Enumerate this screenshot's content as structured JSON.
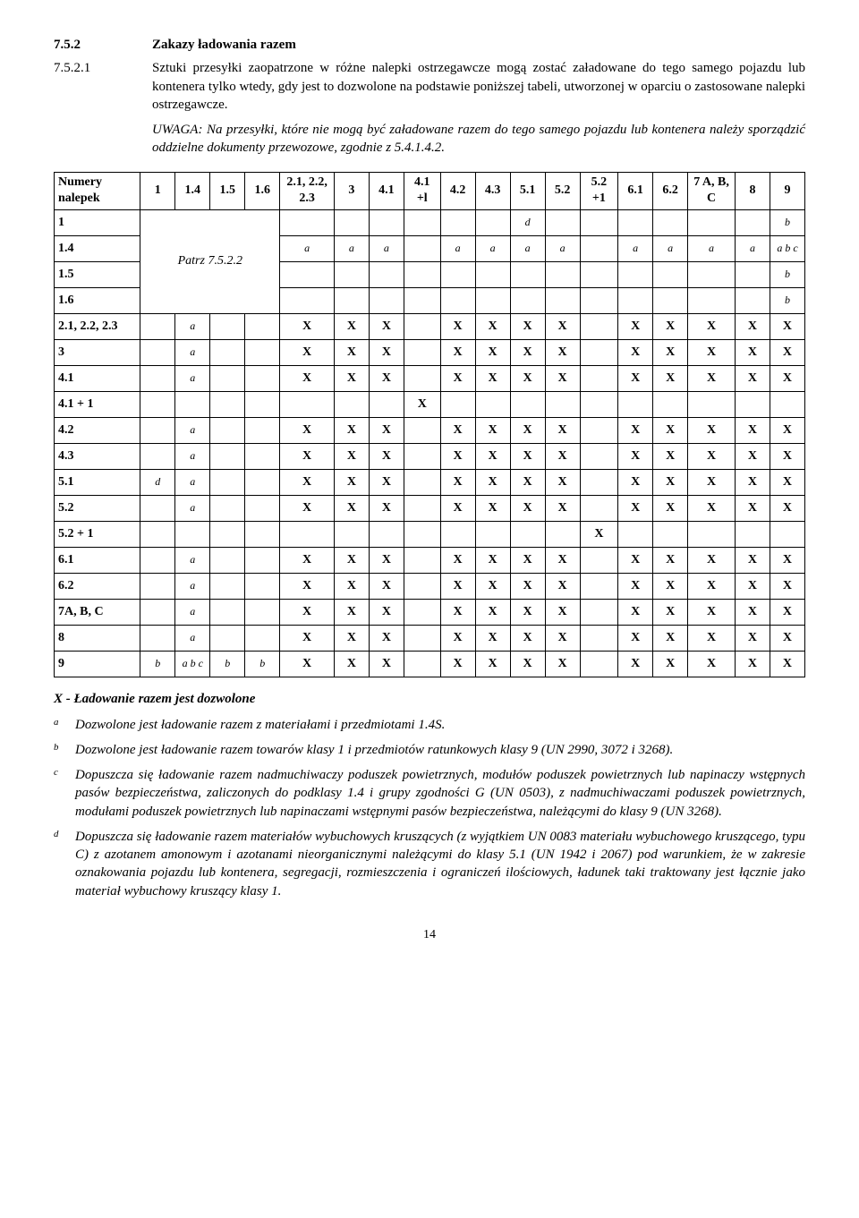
{
  "section": {
    "num1": "7.5.2",
    "title": "Zakazy ładowania razem",
    "num2": "7.5.2.1",
    "para": "Sztuki przesyłki zaopatrzone w różne nalepki ostrzegawcze mogą zostać załadowane do tego samego pojazdu lub kontenera tylko wtedy, gdy jest to dozwolone na podstawie poniższej tabeli, utworzonej w oparciu o zastosowane nalepki ostrzegawcze.",
    "note": "UWAGA: Na przesyłki, które nie mogą być załadowane razem do tego samego pojazdu lub kontenera należy sporządzić oddzielne dokumenty przewozowe, zgodnie z 5.4.1.4.2."
  },
  "table": {
    "corner": "Numery nalepek",
    "cols": [
      "1",
      "1.4",
      "1.5",
      "1.6",
      "2.1, 2.2, 2.3",
      "3",
      "4.1",
      "4.1 +l",
      "4.2",
      "4.3",
      "5.1",
      "5.2",
      "5.2 +1",
      "6.1",
      "6.2",
      "7 A, B, C",
      "8",
      "9"
    ],
    "patrz": "Patrz 7.5.2.2",
    "rows": [
      {
        "h": "1",
        "c": [
          "",
          "",
          "",
          "",
          "",
          "",
          "",
          "",
          "",
          "",
          "d",
          "",
          "",
          "",
          "",
          "",
          "",
          "b"
        ]
      },
      {
        "h": "1.4",
        "c": [
          "",
          "",
          "",
          "",
          "a",
          "a",
          "a",
          "",
          "a",
          "a",
          "a",
          "a",
          "",
          "a",
          "a",
          "a",
          "a",
          "a b c"
        ]
      },
      {
        "h": "1.5",
        "c": [
          "",
          "",
          "",
          "",
          "",
          "",
          "",
          "",
          "",
          "",
          "",
          "",
          "",
          "",
          "",
          "",
          "",
          "b"
        ]
      },
      {
        "h": "1.6",
        "c": [
          "",
          "",
          "",
          "",
          "",
          "",
          "",
          "",
          "",
          "",
          "",
          "",
          "",
          "",
          "",
          "",
          "",
          "b"
        ]
      },
      {
        "h": "2.1, 2.2, 2.3",
        "c": [
          "",
          "a",
          "",
          "",
          "X",
          "X",
          "X",
          "",
          "X",
          "X",
          "X",
          "X",
          "",
          "X",
          "X",
          "X",
          "X",
          "X"
        ]
      },
      {
        "h": "3",
        "c": [
          "",
          "a",
          "",
          "",
          "X",
          "X",
          "X",
          "",
          "X",
          "X",
          "X",
          "X",
          "",
          "X",
          "X",
          "X",
          "X",
          "X"
        ]
      },
      {
        "h": "4.1",
        "c": [
          "",
          "a",
          "",
          "",
          "X",
          "X",
          "X",
          "",
          "X",
          "X",
          "X",
          "X",
          "",
          "X",
          "X",
          "X",
          "X",
          "X"
        ]
      },
      {
        "h": "4.1 + 1",
        "c": [
          "",
          "",
          "",
          "",
          "",
          "",
          "",
          "X",
          "",
          "",
          "",
          "",
          "",
          "",
          "",
          "",
          "",
          ""
        ]
      },
      {
        "h": "4.2",
        "c": [
          "",
          "a",
          "",
          "",
          "X",
          "X",
          "X",
          "",
          "X",
          "X",
          "X",
          "X",
          "",
          "X",
          "X",
          "X",
          "X",
          "X"
        ]
      },
      {
        "h": "4.3",
        "c": [
          "",
          "a",
          "",
          "",
          "X",
          "X",
          "X",
          "",
          "X",
          "X",
          "X",
          "X",
          "",
          "X",
          "X",
          "X",
          "X",
          "X"
        ]
      },
      {
        "h": "5.1",
        "c": [
          "d",
          "a",
          "",
          "",
          "X",
          "X",
          "X",
          "",
          "X",
          "X",
          "X",
          "X",
          "",
          "X",
          "X",
          "X",
          "X",
          "X"
        ]
      },
      {
        "h": "5.2",
        "c": [
          "",
          "a",
          "",
          "",
          "X",
          "X",
          "X",
          "",
          "X",
          "X",
          "X",
          "X",
          "",
          "X",
          "X",
          "X",
          "X",
          "X"
        ]
      },
      {
        "h": "5.2 + 1",
        "c": [
          "",
          "",
          "",
          "",
          "",
          "",
          "",
          "",
          "",
          "",
          "",
          "",
          "X",
          "",
          "",
          "",
          "",
          ""
        ]
      },
      {
        "h": "6.1",
        "c": [
          "",
          "a",
          "",
          "",
          "X",
          "X",
          "X",
          "",
          "X",
          "X",
          "X",
          "X",
          "",
          "X",
          "X",
          "X",
          "X",
          "X"
        ]
      },
      {
        "h": "6.2",
        "c": [
          "",
          "a",
          "",
          "",
          "X",
          "X",
          "X",
          "",
          "X",
          "X",
          "X",
          "X",
          "",
          "X",
          "X",
          "X",
          "X",
          "X"
        ]
      },
      {
        "h": "7A, B, C",
        "c": [
          "",
          "a",
          "",
          "",
          "X",
          "X",
          "X",
          "",
          "X",
          "X",
          "X",
          "X",
          "",
          "X",
          "X",
          "X",
          "X",
          "X"
        ]
      },
      {
        "h": "8",
        "c": [
          "",
          "a",
          "",
          "",
          "X",
          "X",
          "X",
          "",
          "X",
          "X",
          "X",
          "X",
          "",
          "X",
          "X",
          "X",
          "X",
          "X"
        ]
      },
      {
        "h": "9",
        "c": [
          "b",
          "a b c",
          "b",
          "b",
          "X",
          "X",
          "X",
          "",
          "X",
          "X",
          "X",
          "X",
          "",
          "X",
          "X",
          "X",
          "X",
          "X"
        ]
      }
    ]
  },
  "legend": {
    "lead": "X - Ładowanie razem jest dozwolone",
    "notes": [
      {
        "m": "a",
        "t": "Dozwolone jest ładowanie razem z materiałami i przedmiotami 1.4S."
      },
      {
        "m": "b",
        "t": "Dozwolone jest ładowanie razem towarów klasy 1 i przedmiotów ratunkowych klasy 9 (UN 2990, 3072 i 3268)."
      },
      {
        "m": "c",
        "t": "Dopuszcza się ładowanie razem nadmuchiwaczy poduszek powietrznych, modułów poduszek powietrznych lub napinaczy wstępnych pasów bezpieczeństwa, zaliczonych do podklasy 1.4 i grupy zgodności G (UN 0503), z nadmuchiwaczami poduszek powietrznych, modułami poduszek powietrznych lub napinaczami wstępnymi pasów bezpieczeństwa, należącymi do klasy 9 (UN 3268)."
      },
      {
        "m": "d",
        "t": "Dopuszcza się ładowanie razem materiałów wybuchowych kruszących (z wyjątkiem UN 0083 materiału wybuchowego kruszącego, typu C) z azotanem amonowym i azotanami nieorganicznymi należącymi do klasy 5.1 (UN 1942 i 2067) pod warunkiem, że w zakresie oznakowania pojazdu lub kontenera, segregacji, rozmieszczenia i ograniczeń ilościowych, ładunek taki traktowany jest łącznie jako materiał wybuchowy kruszący klasy 1."
      }
    ]
  },
  "page": "14"
}
